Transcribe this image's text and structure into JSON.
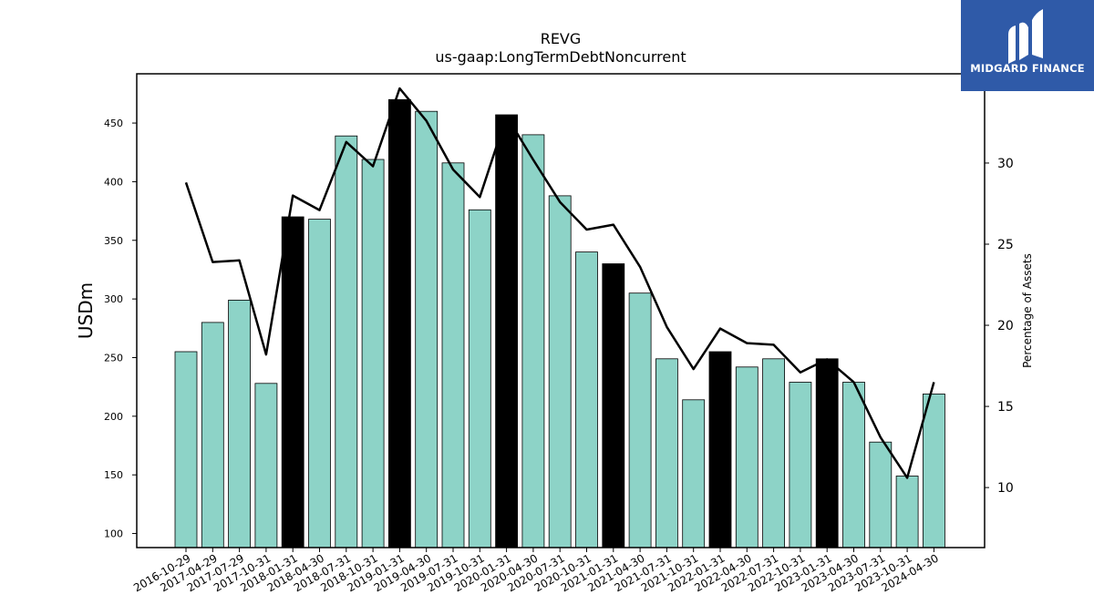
{
  "branding": {
    "name": "MIDGARD FINANCE",
    "bg_color": "#2f5aa8"
  },
  "chart_data": {
    "type": "bar",
    "title": "REVG",
    "subtitle": "us-gaap:LongTermDebtNoncurrent",
    "ylabel": "USDm",
    "y2label": "Percentage of Assets",
    "categories": [
      "2016-10-29",
      "2017-04-29",
      "2017-07-29",
      "2017-10-31",
      "2018-01-31",
      "2018-04-30",
      "2018-07-31",
      "2018-10-31",
      "2019-01-31",
      "2019-04-30",
      "2019-07-31",
      "2019-10-31",
      "2020-01-31",
      "2020-04-30",
      "2020-07-31",
      "2020-10-31",
      "2021-01-31",
      "2021-04-30",
      "2021-07-31",
      "2021-10-31",
      "2022-01-31",
      "2022-04-30",
      "2022-07-31",
      "2022-10-31",
      "2023-01-31",
      "2023-04-30",
      "2023-07-31",
      "2023-10-31",
      "2024-04-30"
    ],
    "series": [
      {
        "kind": "bar",
        "axis": "left",
        "values": [
          255,
          280,
          299,
          228,
          370,
          368,
          439,
          419,
          470,
          460,
          416,
          376,
          457,
          440,
          388,
          340,
          330,
          305,
          249,
          214,
          255,
          242,
          249,
          229,
          249,
          229,
          178,
          149,
          219
        ],
        "highlight": [
          false,
          false,
          false,
          false,
          true,
          false,
          false,
          false,
          true,
          false,
          false,
          false,
          true,
          false,
          false,
          false,
          true,
          false,
          false,
          false,
          true,
          false,
          false,
          false,
          true,
          false,
          false,
          false,
          false
        ],
        "color": "#8dd3c7",
        "highlight_color": "#000000"
      },
      {
        "kind": "line",
        "axis": "right",
        "values": [
          28.8,
          23.9,
          24.0,
          18.2,
          28.0,
          27.1,
          31.3,
          29.8,
          34.6,
          32.6,
          29.6,
          27.9,
          32.9,
          30.2,
          27.6,
          25.9,
          26.2,
          23.6,
          19.9,
          17.3,
          19.8,
          18.9,
          18.8,
          17.1,
          17.9,
          16.5,
          13.1,
          10.6,
          16.5
        ],
        "color": "#000000"
      }
    ],
    "ylim": [
      88,
      492
    ],
    "y2lim": [
      6.3,
      35.5
    ],
    "yticks": [
      100,
      150,
      200,
      250,
      300,
      350,
      400,
      450
    ],
    "y2ticks": [
      10,
      15,
      20,
      25,
      30
    ],
    "grid": false
  }
}
